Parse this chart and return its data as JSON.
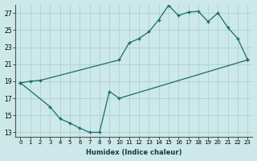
{
  "xlabel": "Humidex (Indice chaleur)",
  "bg_color": "#cce8e8",
  "line_color": "#1a6b6b",
  "grid_color": "#aacccc",
  "xlim": [
    -0.5,
    23.5
  ],
  "ylim": [
    12.5,
    28.0
  ],
  "xticks": [
    0,
    1,
    2,
    3,
    4,
    5,
    6,
    7,
    8,
    9,
    10,
    11,
    12,
    13,
    14,
    15,
    16,
    17,
    18,
    19,
    20,
    21,
    22,
    23
  ],
  "yticks": [
    13,
    15,
    17,
    19,
    21,
    23,
    25,
    27
  ],
  "line1_x": [
    0,
    1,
    2,
    10,
    11,
    12,
    13,
    14,
    15,
    16,
    17,
    18,
    19,
    20,
    21,
    22,
    23
  ],
  "line1_y": [
    18.8,
    19.0,
    19.1,
    21.5,
    23.5,
    24.0,
    24.8,
    26.2,
    27.9,
    26.7,
    27.1,
    27.2,
    26.0,
    27.0,
    25.3,
    24.0,
    21.5
  ],
  "line2_x": [
    0,
    3,
    4,
    5,
    6,
    7,
    8,
    9,
    10,
    23
  ],
  "line2_y": [
    18.8,
    16.0,
    14.6,
    14.1,
    13.5,
    13.0,
    13.0,
    17.8,
    17.0,
    21.5
  ]
}
